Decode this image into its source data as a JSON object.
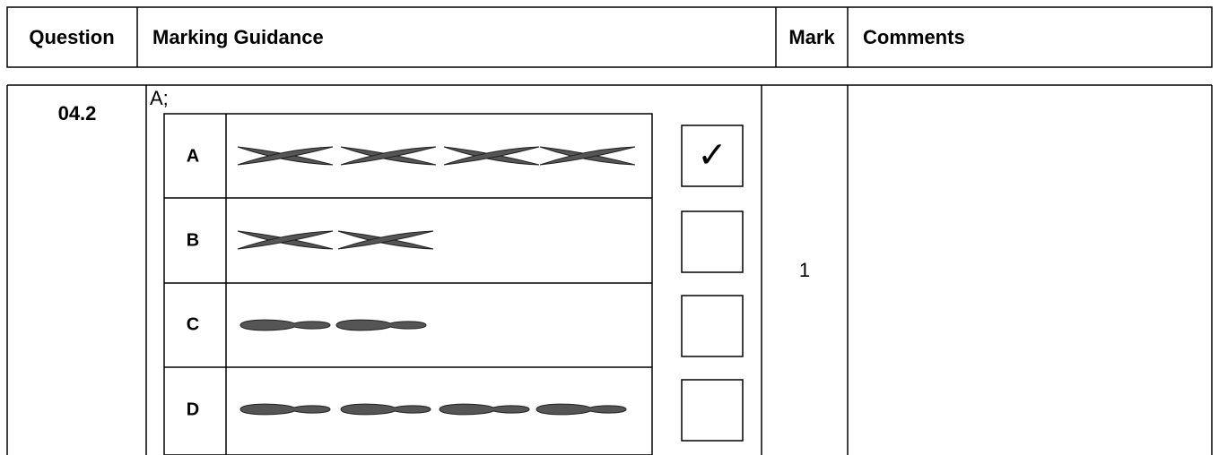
{
  "table": {
    "header": [
      "Question",
      "Marking Guidance",
      "Mark",
      "Comments"
    ],
    "row": {
      "question": "04.2",
      "answer": "A;",
      "mark": "1"
    },
    "options": [
      "A",
      "B",
      "C",
      "D"
    ],
    "tick": "✓"
  }
}
